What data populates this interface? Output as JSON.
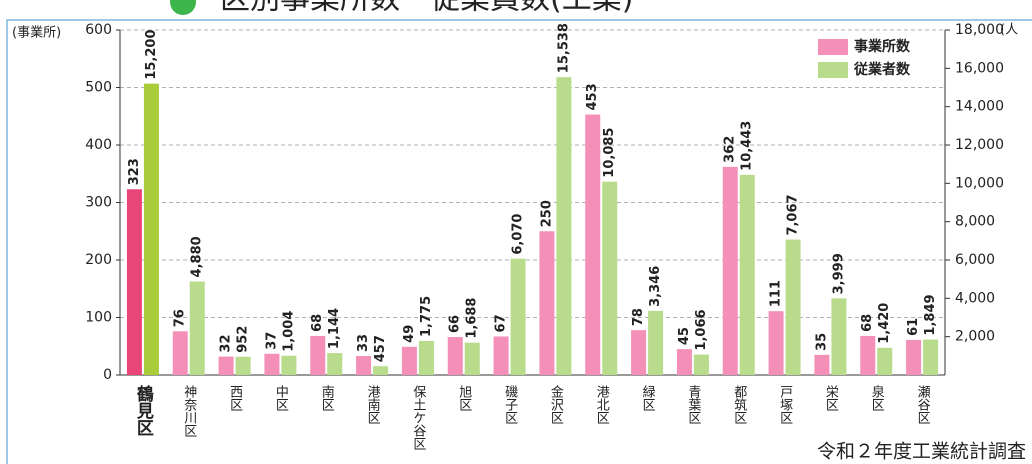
{
  "chart_data": {
    "type": "bar",
    "title": "区別事業所数・従業員数(工業)",
    "y_label": "(事業所)",
    "y2_label": "(人",
    "source": "令和２年度工業統計調査",
    "categories": [
      "鶴見区",
      "神奈川区",
      "西区",
      "中区",
      "南区",
      "港南区",
      "保土ケ谷区",
      "旭区",
      "磯子区",
      "金沢区",
      "港北区",
      "緑区",
      "青葉区",
      "都筑区",
      "戸塚区",
      "栄区",
      "泉区",
      "瀬谷区"
    ],
    "series": [
      {
        "name": "事業所数",
        "color": "#f48fb8",
        "colors": [
          "#e8457a",
          "#f48fb8",
          "#f48fb8",
          "#f48fb8",
          "#f48fb8",
          "#f48fb8",
          "#f48fb8",
          "#f48fb8",
          "#f48fb8",
          "#f48fb8",
          "#f48fb8",
          "#f48fb8",
          "#f48fb8",
          "#f48fb8",
          "#f48fb8",
          "#f48fb8",
          "#f48fb8",
          "#f48fb8"
        ],
        "values": [
          323,
          76,
          32,
          37,
          68,
          33,
          49,
          66,
          67,
          250,
          453,
          78,
          45,
          362,
          111,
          35,
          68,
          61
        ]
      },
      {
        "name": "従業者数",
        "color": "#b8dc8c",
        "axis": "y2",
        "colors": [
          "#a8cc3a",
          "#b8dc8c",
          "#b8dc8c",
          "#b8dc8c",
          "#b8dc8c",
          "#b8dc8c",
          "#b8dc8c",
          "#b8dc8c",
          "#b8dc8c",
          "#b8dc8c",
          "#b8dc8c",
          "#b8dc8c",
          "#b8dc8c",
          "#b8dc8c",
          "#b8dc8c",
          "#b8dc8c",
          "#b8dc8c",
          "#b8dc8c"
        ],
        "values": [
          15200,
          4880,
          952,
          1004,
          1144,
          457,
          1775,
          1688,
          6070,
          15538,
          10085,
          3346,
          1066,
          10443,
          7067,
          3999,
          1420,
          1849
        ],
        "value_labels": [
          "15,200",
          "4,880",
          "952",
          "1,004",
          "1,144",
          "457",
          "1,775",
          "1,688",
          "6,070",
          "15,538",
          "10,085",
          "3,346",
          "1,066",
          "10,443",
          "7,067",
          "3,999",
          "1,420",
          "1,849"
        ]
      }
    ],
    "ylim": [
      0,
      600
    ],
    "yticks": [
      0,
      100,
      200,
      300,
      400,
      500,
      600
    ],
    "y2lim": [
      0,
      18000
    ],
    "y2ticks": [
      {
        "value": 2000,
        "label": "2,000"
      },
      {
        "value": 4000,
        "label": "4,000"
      },
      {
        "value": 6000,
        "label": "6,000"
      },
      {
        "value": 8000,
        "label": "8,000"
      },
      {
        "value": 10000,
        "label": "10,000"
      },
      {
        "value": 12000,
        "label": "12,000"
      },
      {
        "value": 14000,
        "label": "14,000"
      },
      {
        "value": 16000,
        "label": "16,000"
      },
      {
        "value": 18000,
        "label": "18,000"
      }
    ],
    "grid": true,
    "legend": "upper right"
  }
}
